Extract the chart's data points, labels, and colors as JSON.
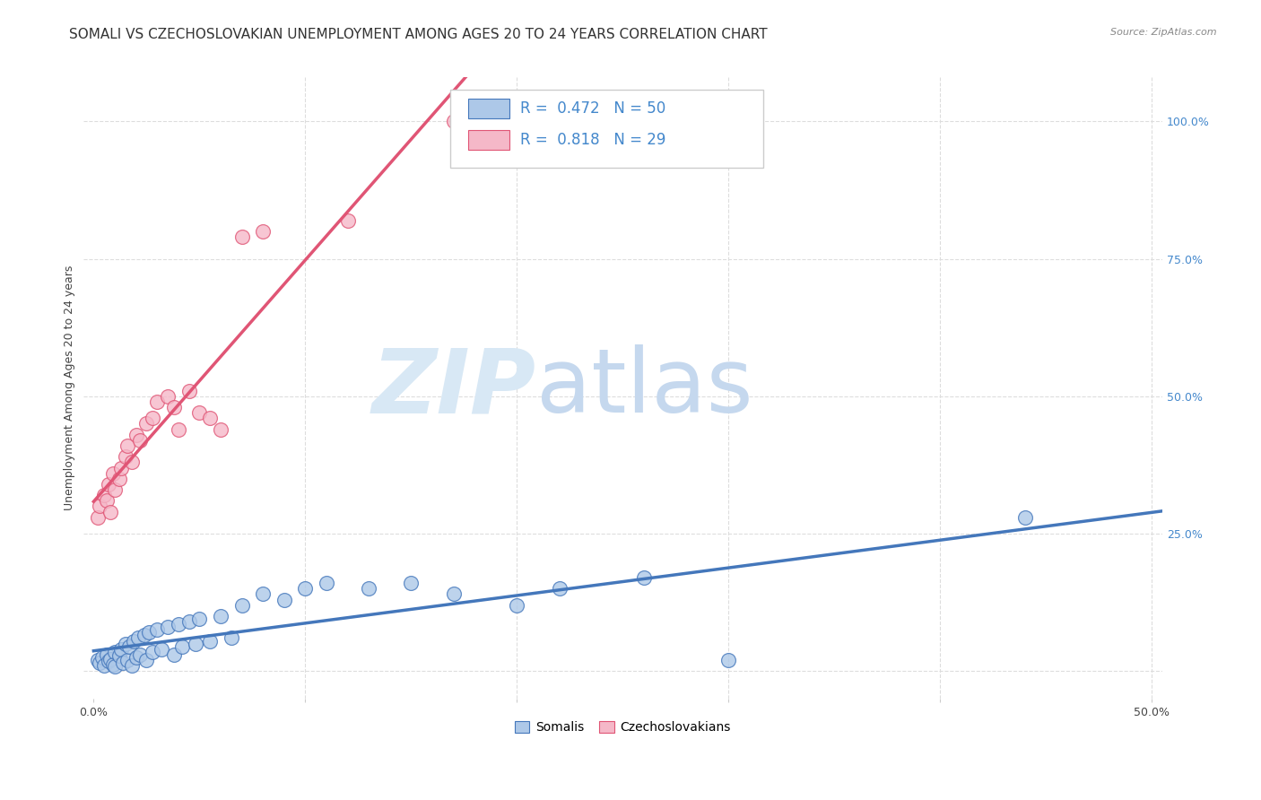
{
  "title": "SOMALI VS CZECHOSLOVAKIAN UNEMPLOYMENT AMONG AGES 20 TO 24 YEARS CORRELATION CHART",
  "source": "Source: ZipAtlas.com",
  "ylabel": "Unemployment Among Ages 20 to 24 years",
  "xlim": [
    -0.005,
    0.505
  ],
  "ylim": [
    -0.05,
    1.08
  ],
  "yticks_right": [
    0.0,
    0.25,
    0.5,
    0.75,
    1.0
  ],
  "ytick_labels_right": [
    "",
    "25.0%",
    "50.0%",
    "75.0%",
    "100.0%"
  ],
  "somali_R": 0.472,
  "somali_N": 50,
  "czech_R": 0.818,
  "czech_N": 29,
  "somali_color": "#adc8e8",
  "czech_color": "#f5b8c8",
  "somali_line_color": "#4477bb",
  "czech_line_color": "#e05575",
  "watermark_zip": "ZIP",
  "watermark_atlas": "atlas",
  "watermark_color_zip": "#d8e8f5",
  "watermark_color_atlas": "#c5d8ee",
  "background_color": "#ffffff",
  "somali_x": [
    0.002,
    0.003,
    0.004,
    0.005,
    0.006,
    0.007,
    0.008,
    0.009,
    0.01,
    0.01,
    0.012,
    0.013,
    0.014,
    0.015,
    0.016,
    0.017,
    0.018,
    0.019,
    0.02,
    0.021,
    0.022,
    0.024,
    0.025,
    0.026,
    0.028,
    0.03,
    0.032,
    0.035,
    0.038,
    0.04,
    0.042,
    0.045,
    0.048,
    0.05,
    0.055,
    0.06,
    0.065,
    0.07,
    0.08,
    0.09,
    0.1,
    0.11,
    0.13,
    0.15,
    0.17,
    0.2,
    0.22,
    0.26,
    0.3,
    0.44
  ],
  "somali_y": [
    0.02,
    0.015,
    0.025,
    0.01,
    0.03,
    0.018,
    0.022,
    0.012,
    0.035,
    0.008,
    0.028,
    0.04,
    0.015,
    0.05,
    0.02,
    0.045,
    0.01,
    0.055,
    0.025,
    0.06,
    0.03,
    0.065,
    0.02,
    0.07,
    0.035,
    0.075,
    0.04,
    0.08,
    0.03,
    0.085,
    0.045,
    0.09,
    0.05,
    0.095,
    0.055,
    0.1,
    0.06,
    0.12,
    0.14,
    0.13,
    0.15,
    0.16,
    0.15,
    0.16,
    0.14,
    0.12,
    0.15,
    0.17,
    0.02,
    0.28
  ],
  "czech_x": [
    0.002,
    0.003,
    0.005,
    0.006,
    0.007,
    0.008,
    0.009,
    0.01,
    0.012,
    0.013,
    0.015,
    0.016,
    0.018,
    0.02,
    0.022,
    0.025,
    0.028,
    0.03,
    0.035,
    0.038,
    0.04,
    0.045,
    0.05,
    0.055,
    0.06,
    0.07,
    0.08,
    0.12,
    0.17
  ],
  "czech_y": [
    0.28,
    0.3,
    0.32,
    0.31,
    0.34,
    0.29,
    0.36,
    0.33,
    0.35,
    0.37,
    0.39,
    0.41,
    0.38,
    0.43,
    0.42,
    0.45,
    0.46,
    0.49,
    0.5,
    0.48,
    0.44,
    0.51,
    0.47,
    0.46,
    0.44,
    0.79,
    0.8,
    0.82,
    1.0
  ],
  "grid_color": "#dddddd",
  "title_fontsize": 11,
  "label_fontsize": 9,
  "legend_fontsize": 12,
  "marker_size": 130
}
